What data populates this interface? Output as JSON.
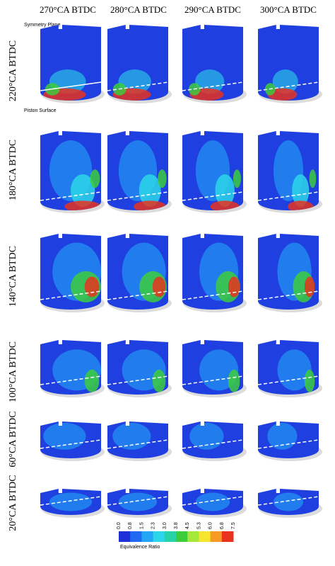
{
  "column_headers": [
    "270°CA BTDC",
    "280°CA BTDC",
    "290°CA BTDC",
    "300°CA BTDC"
  ],
  "row_labels": [
    "220°CA BTDC",
    "180°CA BTDC",
    "140°CA BTDC",
    "100°CA BTDC",
    "60°CA BTDC",
    "20°CA BTDC"
  ],
  "annotations": {
    "symmetry_plane": "Symmetry Plane",
    "piston_surface": "Piston Surface"
  },
  "colorbar": {
    "ticks": [
      "0.0",
      "0.8",
      "1.5",
      "2.3",
      "3.0",
      "3.8",
      "4.5",
      "5.3",
      "6.0",
      "6.8",
      "7.5"
    ],
    "label": "Equivalence Ratio"
  }
}
